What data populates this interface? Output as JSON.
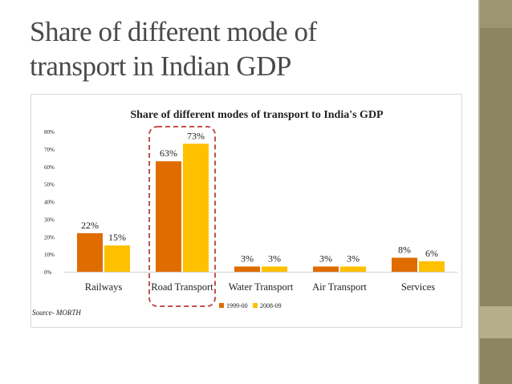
{
  "slide": {
    "title_line1": "Share of different mode of",
    "title_line2": "transport in Indian GDP"
  },
  "theme": {
    "sidebar": "#8b8560",
    "series1": "#e06c00",
    "series2": "#ffc000",
    "highlight": "#c0504d"
  },
  "chart_data": {
    "type": "bar",
    "title": "Share of different modes of transport to India's GDP",
    "categories": [
      "Railways",
      "Road Transport",
      "Water Transport",
      "Air Transport",
      "Services"
    ],
    "series": [
      {
        "name": "1999-00",
        "values": [
          22,
          63,
          3,
          3,
          8
        ],
        "labels": [
          "22%",
          "63%",
          "3%",
          "3%",
          "8%"
        ],
        "color": "#e06c00"
      },
      {
        "name": "2008-09",
        "values": [
          15,
          73,
          3,
          3,
          6
        ],
        "labels": [
          "15%",
          "73%",
          "3%",
          "3%",
          "6%"
        ],
        "color": "#ffc000"
      }
    ],
    "y_ticks": [
      "0%",
      "10%",
      "20%",
      "30%",
      "40%",
      "50%",
      "60%",
      "70%",
      "80%"
    ],
    "ylim": [
      0,
      80
    ],
    "highlighted_category": "Road Transport",
    "source": "Source- MORTH"
  }
}
